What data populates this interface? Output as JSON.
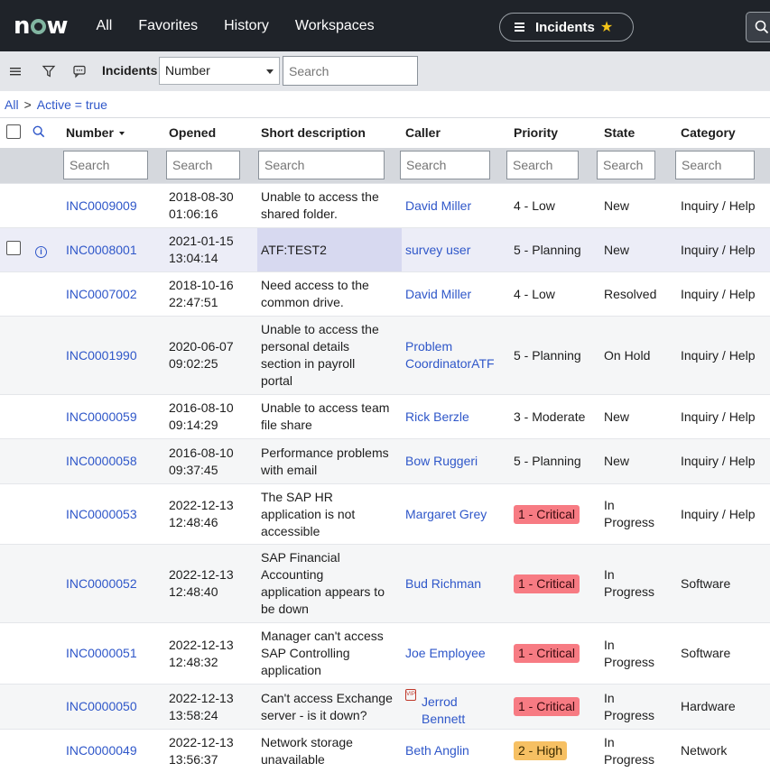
{
  "nav": {
    "logo": "now",
    "links": [
      "All",
      "Favorites",
      "History",
      "Workspaces"
    ],
    "context_pill": "Incidents"
  },
  "toolbar": {
    "title": "Incidents",
    "field_select": "Number",
    "search_placeholder": "Search"
  },
  "breadcrumb": {
    "root": "All",
    "separator": ">",
    "filter": "Active = true"
  },
  "table": {
    "columns": [
      "Number",
      "Opened",
      "Short description",
      "Caller",
      "Priority",
      "State",
      "Category"
    ],
    "filter_placeholder": "Search",
    "rows": [
      {
        "number": "INC0009009",
        "opened_date": "2018-08-30",
        "opened_time": "01:06:16",
        "desc": [
          "Unable to access the",
          "shared folder."
        ],
        "caller": [
          "David Miller"
        ],
        "priority": "4 - Low",
        "state": [
          "New"
        ],
        "category": "Inquiry / Help"
      },
      {
        "number": "INC0008001",
        "opened_date": "2021-01-15",
        "opened_time": "13:04:14",
        "desc": [
          "ATF:TEST2"
        ],
        "caller": [
          "survey user"
        ],
        "priority": "5 - Planning",
        "state": [
          "New"
        ],
        "category": "Inquiry / Help"
      },
      {
        "number": "INC0007002",
        "opened_date": "2018-10-16",
        "opened_time": "22:47:51",
        "desc": [
          "Need access to the",
          "common drive."
        ],
        "caller": [
          "David Miller"
        ],
        "priority": "4 - Low",
        "state": [
          "Resolved"
        ],
        "category": "Inquiry / Help"
      },
      {
        "number": "INC0001990",
        "opened_date": "2020-06-07",
        "opened_time": "09:02:25",
        "desc": [
          "Unable to access the",
          "personal details",
          "section in payroll",
          "portal"
        ],
        "caller": [
          "Problem",
          "CoordinatorATF"
        ],
        "priority": "5 - Planning",
        "state": [
          "On Hold"
        ],
        "category": "Inquiry / Help"
      },
      {
        "number": "INC0000059",
        "opened_date": "2016-08-10",
        "opened_time": "09:14:29",
        "desc": [
          "Unable to access team",
          "file share"
        ],
        "caller": [
          "Rick Berzle"
        ],
        "priority": "3 - Moderate",
        "state": [
          "New"
        ],
        "category": "Inquiry / Help"
      },
      {
        "number": "INC0000058",
        "opened_date": "2016-08-10",
        "opened_time": "09:37:45",
        "desc": [
          "Performance problems",
          "with email"
        ],
        "caller": [
          "Bow Ruggeri"
        ],
        "priority": "5 - Planning",
        "state": [
          "New"
        ],
        "category": "Inquiry / Help"
      },
      {
        "number": "INC0000053",
        "opened_date": "2022-12-13",
        "opened_time": "12:48:46",
        "desc": [
          "The SAP HR",
          "application is not",
          "accessible"
        ],
        "caller": [
          "Margaret Grey"
        ],
        "priority": "1 - Critical",
        "state": [
          "In",
          "Progress"
        ],
        "category": "Inquiry / Help"
      },
      {
        "number": "INC0000052",
        "opened_date": "2022-12-13",
        "opened_time": "12:48:40",
        "desc": [
          "SAP Financial",
          "Accounting",
          "application appears to",
          "be down"
        ],
        "caller": [
          "Bud Richman"
        ],
        "priority": "1 - Critical",
        "state": [
          "In",
          "Progress"
        ],
        "category": "Software"
      },
      {
        "number": "INC0000051",
        "opened_date": "2022-12-13",
        "opened_time": "12:48:32",
        "desc": [
          "Manager can't access",
          "SAP Controlling",
          "application"
        ],
        "caller": [
          "Joe Employee"
        ],
        "priority": "1 - Critical",
        "state": [
          "In",
          "Progress"
        ],
        "category": "Software"
      },
      {
        "number": "INC0000050",
        "opened_date": "2022-12-13",
        "opened_time": "13:58:24",
        "desc": [
          "Can't access Exchange",
          "server - is it down?"
        ],
        "caller": [
          "Jerrod",
          "Bennett"
        ],
        "caller_vip": true,
        "priority": "1 - Critical",
        "state": [
          "In",
          "Progress"
        ],
        "category": "Hardware"
      },
      {
        "number": "INC0000049",
        "opened_date": "2022-12-13",
        "opened_time": "13:56:37",
        "desc": [
          "Network storage",
          "unavailable"
        ],
        "caller": [
          "Beth Anglin"
        ],
        "priority": "2 - High",
        "state": [
          "In",
          "Progress"
        ],
        "category": "Network"
      }
    ]
  },
  "colors": {
    "nav_bg": "#1f2329",
    "toolbar_bg": "#e4e6ea",
    "link": "#2f57c9",
    "critical": "#f77b83",
    "high": "#f6c063",
    "selected_row": "#ecedf7"
  }
}
